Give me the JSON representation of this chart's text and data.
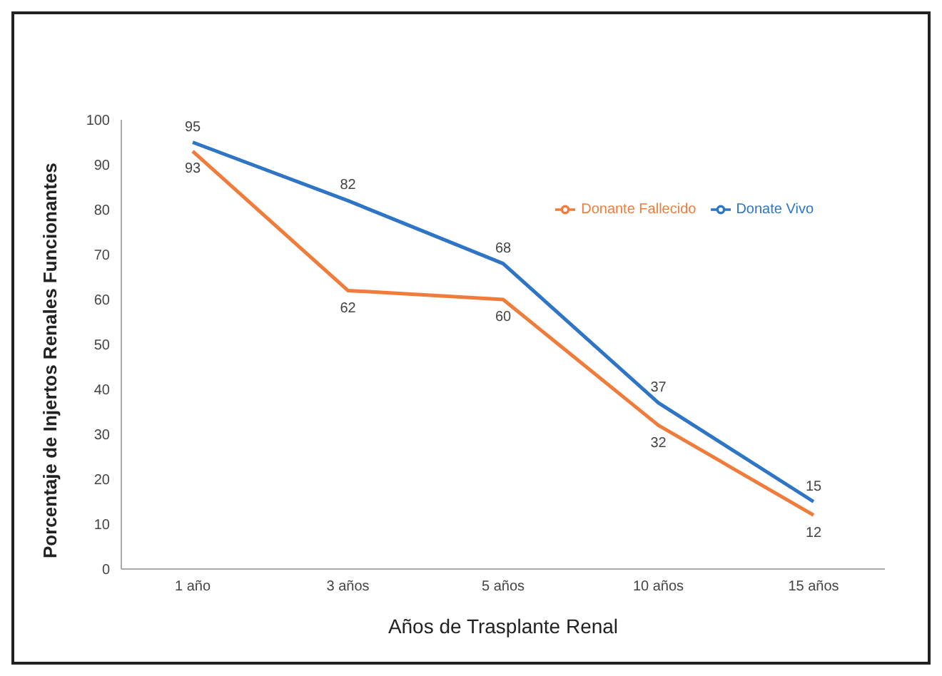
{
  "chart_data": {
    "type": "line",
    "xlabel": "Años de Trasplante Renal",
    "ylabel": "Porcentaje de Injertos Renales Funcionantes",
    "categories": [
      "1 año",
      "3 años",
      "5 años",
      "10 años",
      "15 años"
    ],
    "series": [
      {
        "name": "Donate Vivo",
        "color": "#2e75c6",
        "values": [
          95,
          82,
          68,
          37,
          15
        ]
      },
      {
        "name": "Donante Fallecido",
        "color": "#f07c3c",
        "values": [
          93,
          62,
          60,
          32,
          12
        ]
      }
    ],
    "ylim": [
      0,
      100
    ],
    "yticks": [
      0,
      10,
      20,
      30,
      40,
      50,
      60,
      70,
      80,
      90,
      100
    ],
    "grid": false,
    "legend": "top right",
    "data_labels": true,
    "marker": "none",
    "line_style": "solid"
  }
}
